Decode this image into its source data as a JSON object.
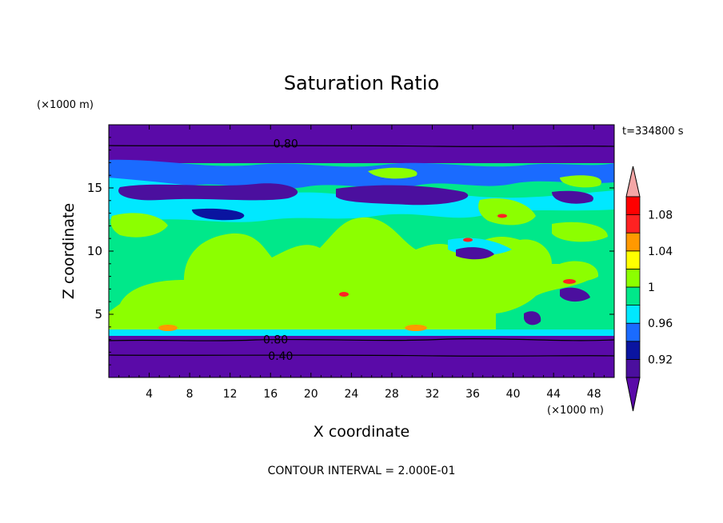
{
  "chart_data": {
    "type": "heatmap",
    "title": "Saturation Ratio",
    "xlabel": "X coordinate",
    "ylabel": "Z coordinate",
    "x_unit": "(×1000 m)",
    "y_unit": "(×1000 m)",
    "time_label": "t=334800  s",
    "footer": "CONTOUR INTERVAL = 2.000E-01",
    "xlim": [
      0,
      50
    ],
    "ylim": [
      0,
      20
    ],
    "x_ticks": [
      4,
      8,
      12,
      16,
      20,
      24,
      28,
      32,
      36,
      40,
      44,
      48
    ],
    "y_ticks": [
      5,
      10,
      15
    ],
    "contour_labels": [
      {
        "text": "0.80",
        "x": 17.5,
        "y": 18.5
      },
      {
        "text": "0.80",
        "x": 16.5,
        "y": 3.0
      },
      {
        "text": "0.40",
        "x": 17.0,
        "y": 1.7
      }
    ],
    "colorbar": {
      "levels": [
        0.9,
        0.92,
        0.94,
        0.96,
        0.98,
        1.0,
        1.02,
        1.04,
        1.06,
        1.08,
        1.1
      ],
      "tick_labels": [
        "0.92",
        "0.96",
        "1",
        "1.04",
        "1.08"
      ],
      "colors": [
        "#4b0f9e",
        "#0a14a0",
        "#1a6bff",
        "#00e8ff",
        "#00e88a",
        "#8cff00",
        "#ffff00",
        "#ff9900",
        "#ff2222",
        "#ff0000"
      ],
      "under_color": "#5a0aa8",
      "over_color": "#f4a6a6"
    },
    "regions": {
      "background": "#8cff00",
      "top_band": {
        "color": "#5a0aa8",
        "z_range": [
          17,
          20
        ]
      },
      "bottom_band": {
        "color": "#5a0aa8",
        "z_range": [
          0,
          3.3
        ]
      }
    }
  }
}
